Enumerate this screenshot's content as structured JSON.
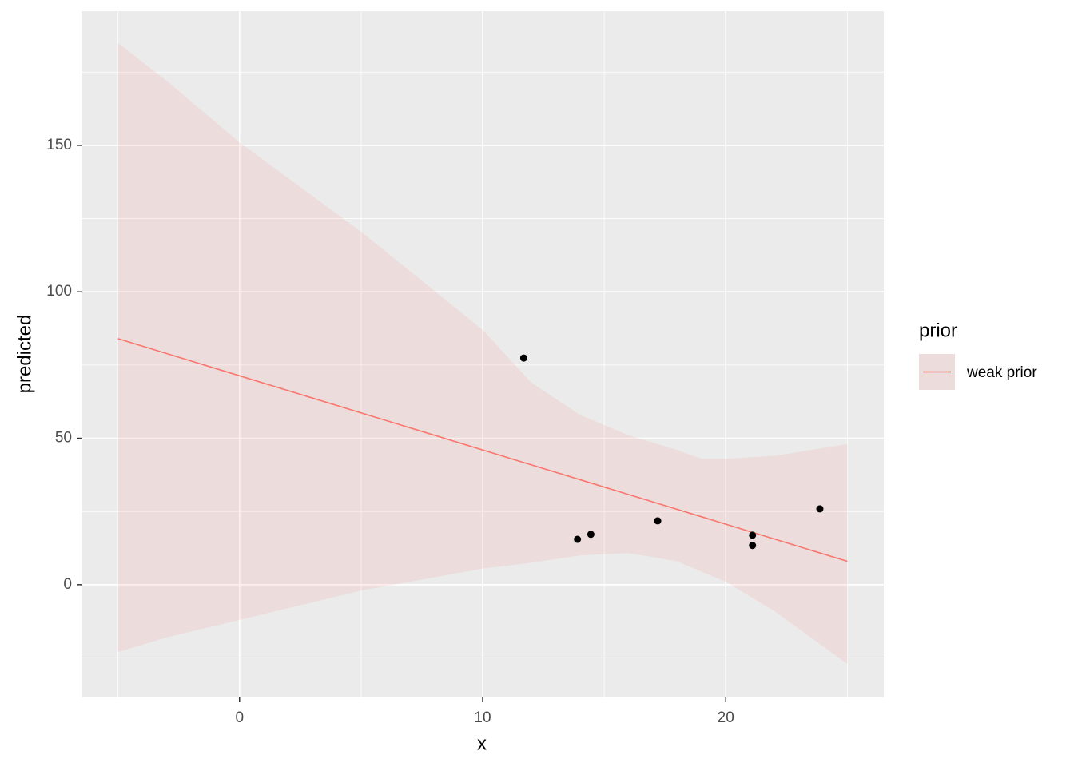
{
  "chart_data": {
    "type": "line",
    "x_label": "x",
    "y_label": "predicted",
    "legend_title": "prior",
    "legend_position": "right",
    "xlim": [
      -6.5,
      26.5
    ],
    "xticks": [
      0,
      10,
      20
    ],
    "x_minor_ticks": [
      -5,
      5,
      15,
      25
    ],
    "ylim": [
      -38.5,
      195.8
    ],
    "yticks": [
      0,
      50,
      100,
      150
    ],
    "y_minor_ticks": [
      -25,
      25,
      75,
      125,
      175
    ],
    "grid": true,
    "series": [
      {
        "name": "weak prior",
        "color": "#F8766D",
        "x": [
          -5,
          25
        ],
        "values": [
          84,
          8
        ]
      }
    ],
    "band": {
      "color": "#F8766D",
      "opacity": 0.12,
      "x": [
        -5,
        -3,
        0,
        5,
        10,
        12,
        14,
        16,
        18,
        19,
        20,
        22,
        25
      ],
      "upper": [
        185,
        172,
        151,
        120.5,
        87,
        69,
        58,
        51,
        46,
        43,
        43,
        44,
        48
      ],
      "lower": [
        -23,
        -18,
        -12,
        -2,
        5.5,
        7.5,
        10,
        10.8,
        8,
        4.5,
        1,
        -9,
        -27
      ]
    },
    "points": {
      "color": "#000000",
      "x": [
        11.69,
        13.9,
        14.45,
        17.2,
        21.1,
        21.1,
        23.87
      ],
      "y": [
        77.4,
        15.5,
        17.2,
        21.8,
        16.9,
        13.4,
        25.9
      ]
    }
  }
}
